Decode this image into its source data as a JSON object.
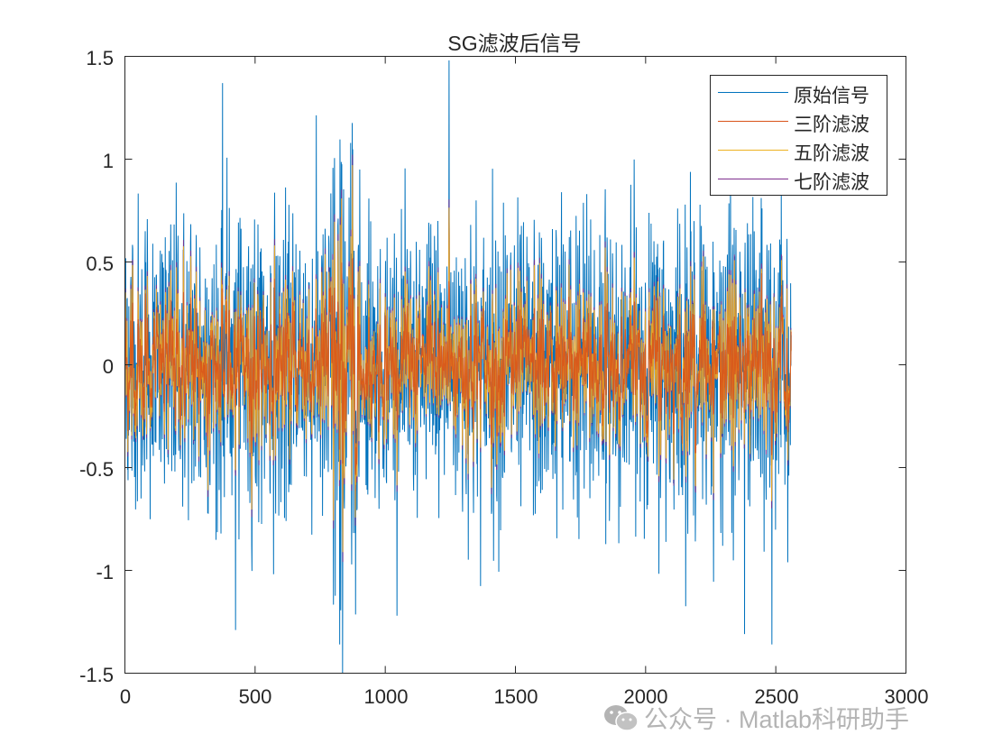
{
  "figure": {
    "title": "SG滤波后信号",
    "watermark": "公众号 · Matlab科研助手",
    "watermark_icon": "wechat-icon"
  },
  "axes": {
    "xticks": [
      "0",
      "500",
      "1000",
      "1500",
      "2000",
      "2500",
      "3000"
    ],
    "yticks": [
      "1.5",
      "1",
      "0.5",
      "0",
      "-0.5",
      "-1",
      "-1.5"
    ]
  },
  "legend": {
    "items": [
      {
        "label": "原始信号",
        "color": "#0072BD"
      },
      {
        "label": "三阶滤波",
        "color": "#D95319"
      },
      {
        "label": "五阶滤波",
        "color": "#EDB120"
      },
      {
        "label": "七阶滤波",
        "color": "#7E2F8E"
      }
    ]
  },
  "chart_data": {
    "type": "line",
    "title": "SG滤波后信号",
    "xlabel": "",
    "ylabel": "",
    "xlim": [
      0,
      3000
    ],
    "ylim": [
      -1.5,
      1.5
    ],
    "xticks": [
      0,
      500,
      1000,
      1500,
      2000,
      2500,
      3000
    ],
    "yticks": [
      -1.5,
      -1,
      -0.5,
      0,
      0.5,
      1,
      1.5
    ],
    "grid": false,
    "legend_position": "northeast",
    "n_samples": 2560,
    "series": [
      {
        "name": "原始信号",
        "color": "#0072BD",
        "description": "noisy raw signal, approx range [-1.36, 1.48]",
        "approx_range": [
          -1.36,
          1.48
        ]
      },
      {
        "name": "三阶滤波",
        "color": "#D95319",
        "description": "3rd-order Savitzky-Golay filtered",
        "approx_range": [
          -0.8,
          0.8
        ]
      },
      {
        "name": "五阶滤波",
        "color": "#EDB120",
        "description": "5th-order Savitzky-Golay filtered",
        "approx_range": [
          -0.82,
          0.85
        ]
      },
      {
        "name": "七阶滤波",
        "color": "#7E2F8E",
        "description": "7th-order Savitzky-Golay filtered",
        "approx_range": [
          -0.85,
          0.88
        ]
      }
    ],
    "notable_points": [
      {
        "x": 1245,
        "y": 1.48,
        "series": "原始信号"
      },
      {
        "x": 375,
        "y": 1.37,
        "series": "原始信号"
      },
      {
        "x": 825,
        "y": -1.36,
        "series": "原始信号"
      },
      {
        "x": 2485,
        "y": -1.36,
        "series": "原始信号"
      },
      {
        "x": 425,
        "y": -1.29,
        "series": "原始信号"
      },
      {
        "x": 2380,
        "y": -1.31,
        "series": "原始信号"
      }
    ]
  }
}
